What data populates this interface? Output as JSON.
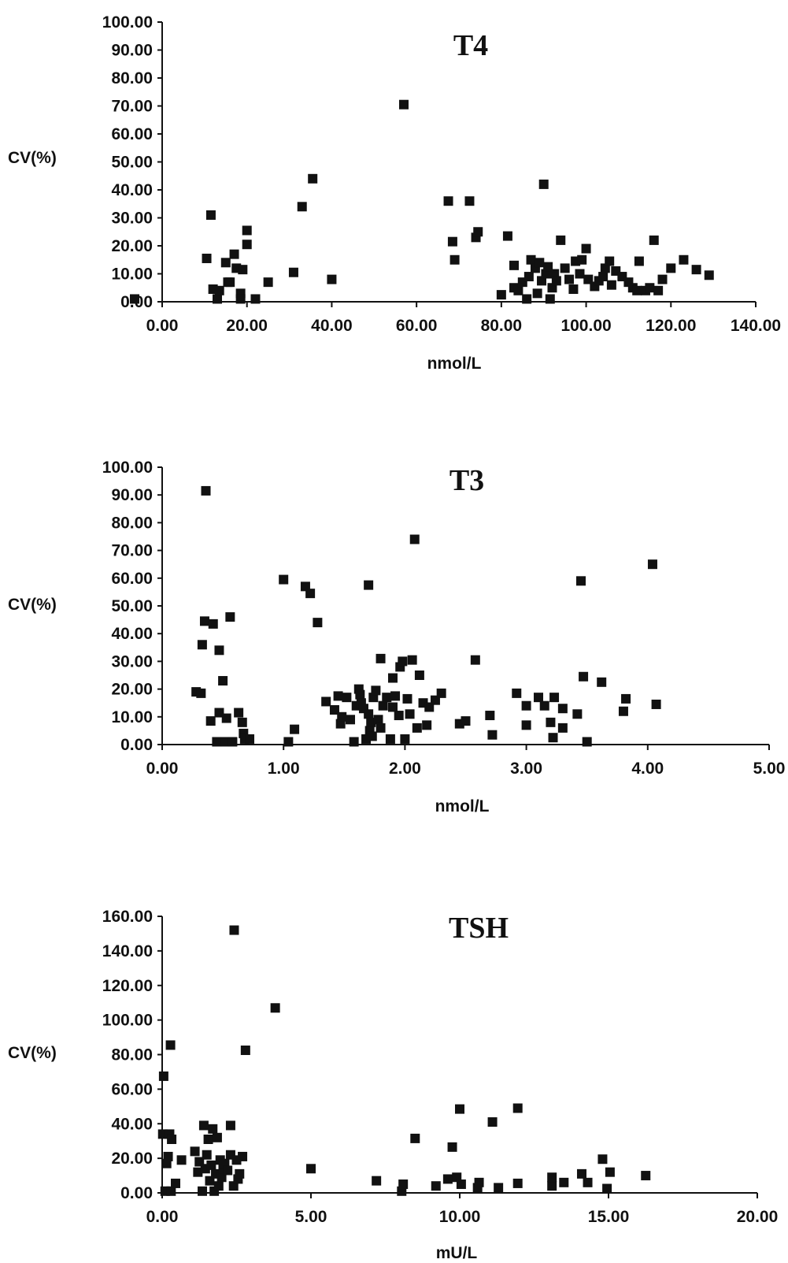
{
  "chart_data": [
    {
      "type": "scatter",
      "title": "T4",
      "xlabel": "nmol/L",
      "ylabel": "CV(%)",
      "xlim": [
        0,
        140
      ],
      "ylim": [
        0,
        100
      ],
      "xticks": [
        "0.00",
        "20.00",
        "40.00",
        "60.00",
        "80.00",
        "100.00",
        "120.00",
        "140.00"
      ],
      "yticks": [
        "0.00",
        "10.00",
        "20.00",
        "30.00",
        "40.00",
        "50.00",
        "60.00",
        "70.00",
        "80.00",
        "90.00",
        "100.00"
      ],
      "grid": false,
      "marker_color": "#111111",
      "points": [
        [
          -6.5,
          1
        ],
        [
          10.5,
          15.5
        ],
        [
          11.5,
          31
        ],
        [
          12,
          4.5
        ],
        [
          13,
          1
        ],
        [
          13.5,
          4
        ],
        [
          15,
          14
        ],
        [
          15.5,
          7
        ],
        [
          16,
          7
        ],
        [
          17,
          17
        ],
        [
          17.5,
          12
        ],
        [
          18.5,
          3
        ],
        [
          18.5,
          1
        ],
        [
          19,
          11.5
        ],
        [
          20,
          25.5
        ],
        [
          20,
          20.5
        ],
        [
          22,
          1
        ],
        [
          25,
          7
        ],
        [
          31,
          10.5
        ],
        [
          33,
          34
        ],
        [
          35.5,
          44
        ],
        [
          40,
          8
        ],
        [
          57,
          70.5
        ],
        [
          67.5,
          36
        ],
        [
          68.5,
          21.5
        ],
        [
          69,
          15
        ],
        [
          72.5,
          36
        ],
        [
          74,
          23
        ],
        [
          74.5,
          25
        ],
        [
          80,
          2.5
        ],
        [
          81.5,
          23.5
        ],
        [
          83,
          13
        ],
        [
          83,
          5
        ],
        [
          84,
          4
        ],
        [
          85,
          7
        ],
        [
          86,
          1
        ],
        [
          86.5,
          9
        ],
        [
          87,
          15
        ],
        [
          88,
          12
        ],
        [
          88.5,
          3
        ],
        [
          89,
          14
        ],
        [
          89.5,
          7.5
        ],
        [
          90,
          42
        ],
        [
          90.5,
          10
        ],
        [
          91,
          12.5
        ],
        [
          91.5,
          1
        ],
        [
          92,
          5
        ],
        [
          92.5,
          10
        ],
        [
          93,
          7.5
        ],
        [
          94,
          22
        ],
        [
          95,
          12
        ],
        [
          96,
          8
        ],
        [
          97,
          4.5
        ],
        [
          97.5,
          14.5
        ],
        [
          98.5,
          10
        ],
        [
          99,
          15
        ],
        [
          100,
          19
        ],
        [
          100.5,
          8
        ],
        [
          102,
          5.5
        ],
        [
          103,
          7.5
        ],
        [
          104,
          9
        ],
        [
          104.5,
          12
        ],
        [
          105.5,
          14.5
        ],
        [
          106,
          6
        ],
        [
          107,
          11
        ],
        [
          108.5,
          9
        ],
        [
          110,
          7
        ],
        [
          111,
          5
        ],
        [
          112,
          4
        ],
        [
          112.5,
          14.5
        ],
        [
          114,
          4
        ],
        [
          115,
          5
        ],
        [
          116,
          22
        ],
        [
          117,
          4
        ],
        [
          118,
          8
        ],
        [
          120,
          12
        ],
        [
          123,
          15
        ],
        [
          126,
          11.5
        ],
        [
          129,
          9.5
        ]
      ]
    },
    {
      "type": "scatter",
      "title": "T3",
      "xlabel": "nmol/L",
      "ylabel": "CV(%)",
      "xlim": [
        0,
        5
      ],
      "ylim": [
        0,
        100
      ],
      "xticks": [
        "0.00",
        "1.00",
        "2.00",
        "3.00",
        "4.00",
        "5.00"
      ],
      "yticks": [
        "0.00",
        "10.00",
        "20.00",
        "30.00",
        "40.00",
        "50.00",
        "60.00",
        "70.00",
        "80.00",
        "90.00",
        "100.00"
      ],
      "grid": false,
      "marker_color": "#111111",
      "points": [
        [
          0.28,
          19
        ],
        [
          0.32,
          18.5
        ],
        [
          0.33,
          36
        ],
        [
          0.35,
          44.5
        ],
        [
          0.36,
          91.5
        ],
        [
          0.4,
          8.5
        ],
        [
          0.42,
          43.5
        ],
        [
          0.45,
          1
        ],
        [
          0.47,
          11.5
        ],
        [
          0.47,
          34
        ],
        [
          0.5,
          23
        ],
        [
          0.52,
          1
        ],
        [
          0.53,
          9.5
        ],
        [
          0.56,
          46
        ],
        [
          0.58,
          1
        ],
        [
          0.63,
          11.5
        ],
        [
          0.66,
          8
        ],
        [
          0.67,
          4
        ],
        [
          0.68,
          2
        ],
        [
          0.72,
          2
        ],
        [
          1.0,
          59.5
        ],
        [
          1.04,
          1
        ],
        [
          1.09,
          5.5
        ],
        [
          1.18,
          57
        ],
        [
          1.22,
          54.5
        ],
        [
          1.28,
          44
        ],
        [
          1.35,
          15.5
        ],
        [
          1.42,
          12.5
        ],
        [
          1.45,
          17.5
        ],
        [
          1.47,
          7.5
        ],
        [
          1.48,
          10
        ],
        [
          1.52,
          17
        ],
        [
          1.55,
          9
        ],
        [
          1.58,
          1
        ],
        [
          1.6,
          14
        ],
        [
          1.62,
          20
        ],
        [
          1.63,
          18
        ],
        [
          1.64,
          15
        ],
        [
          1.66,
          13
        ],
        [
          1.68,
          2
        ],
        [
          1.7,
          57.5
        ],
        [
          1.7,
          11
        ],
        [
          1.71,
          5
        ],
        [
          1.72,
          8
        ],
        [
          1.73,
          3
        ],
        [
          1.74,
          17
        ],
        [
          1.76,
          19.5
        ],
        [
          1.78,
          9
        ],
        [
          1.8,
          6
        ],
        [
          1.8,
          31
        ],
        [
          1.82,
          14
        ],
        [
          1.85,
          17
        ],
        [
          1.88,
          2
        ],
        [
          1.9,
          24
        ],
        [
          1.9,
          13.5
        ],
        [
          1.92,
          17.5
        ],
        [
          1.95,
          10.5
        ],
        [
          1.96,
          28
        ],
        [
          1.98,
          30
        ],
        [
          2.0,
          2
        ],
        [
          2.02,
          16.5
        ],
        [
          2.04,
          11
        ],
        [
          2.06,
          30.5
        ],
        [
          2.08,
          74
        ],
        [
          2.1,
          6
        ],
        [
          2.12,
          25
        ],
        [
          2.15,
          15
        ],
        [
          2.18,
          7
        ],
        [
          2.2,
          13.5
        ],
        [
          2.25,
          16
        ],
        [
          2.3,
          18.5
        ],
        [
          2.45,
          7.5
        ],
        [
          2.5,
          8.5
        ],
        [
          2.58,
          30.5
        ],
        [
          2.7,
          10.5
        ],
        [
          2.72,
          3.5
        ],
        [
          2.92,
          18.5
        ],
        [
          3.0,
          14
        ],
        [
          3.0,
          7
        ],
        [
          3.1,
          17
        ],
        [
          3.15,
          14
        ],
        [
          3.2,
          8
        ],
        [
          3.22,
          2.5
        ],
        [
          3.23,
          17
        ],
        [
          3.3,
          13
        ],
        [
          3.3,
          6
        ],
        [
          3.42,
          11
        ],
        [
          3.45,
          59
        ],
        [
          3.47,
          24.5
        ],
        [
          3.5,
          1
        ],
        [
          3.62,
          22.5
        ],
        [
          3.8,
          12
        ],
        [
          3.82,
          16.5
        ],
        [
          4.04,
          65
        ],
        [
          4.07,
          14.5
        ]
      ]
    },
    {
      "type": "scatter",
      "title": "TSH",
      "xlabel": "mU/L",
      "ylabel": "CV(%)",
      "xlim": [
        0,
        20
      ],
      "ylim": [
        0,
        160
      ],
      "xticks": [
        "0.00",
        "5.00",
        "10.00",
        "15.00",
        "20.00"
      ],
      "yticks": [
        "0.00",
        "20.00",
        "40.00",
        "60.00",
        "80.00",
        "100.00",
        "120.00",
        "140.00",
        "160.00"
      ],
      "grid": false,
      "marker_color": "#111111",
      "points": [
        [
          0.02,
          34
        ],
        [
          0.05,
          67.5
        ],
        [
          0.1,
          1
        ],
        [
          0.15,
          17
        ],
        [
          0.2,
          21
        ],
        [
          0.25,
          34
        ],
        [
          0.28,
          85.5
        ],
        [
          0.3,
          1
        ],
        [
          0.32,
          31
        ],
        [
          0.45,
          5.5
        ],
        [
          0.65,
          19
        ],
        [
          1.1,
          24
        ],
        [
          1.2,
          12
        ],
        [
          1.25,
          18
        ],
        [
          1.35,
          1
        ],
        [
          1.4,
          39
        ],
        [
          1.45,
          14
        ],
        [
          1.5,
          22
        ],
        [
          1.55,
          31
        ],
        [
          1.6,
          7
        ],
        [
          1.65,
          16
        ],
        [
          1.7,
          37
        ],
        [
          1.75,
          1
        ],
        [
          1.8,
          11
        ],
        [
          1.85,
          32
        ],
        [
          1.9,
          4
        ],
        [
          1.95,
          19
        ],
        [
          2.0,
          9
        ],
        [
          2.05,
          14
        ],
        [
          2.1,
          17
        ],
        [
          2.2,
          13
        ],
        [
          2.3,
          22
        ],
        [
          2.3,
          39
        ],
        [
          2.4,
          4
        ],
        [
          2.42,
          152
        ],
        [
          2.5,
          19
        ],
        [
          2.55,
          8
        ],
        [
          2.6,
          11
        ],
        [
          2.7,
          21
        ],
        [
          2.8,
          82.5
        ],
        [
          3.8,
          107
        ],
        [
          5.0,
          14
        ],
        [
          7.2,
          7
        ],
        [
          8.05,
          1
        ],
        [
          8.1,
          5
        ],
        [
          8.5,
          31.5
        ],
        [
          9.2,
          4
        ],
        [
          9.6,
          8
        ],
        [
          9.75,
          26.5
        ],
        [
          9.9,
          9
        ],
        [
          10.0,
          48.5
        ],
        [
          10.05,
          5
        ],
        [
          10.6,
          3
        ],
        [
          10.65,
          6
        ],
        [
          11.1,
          41
        ],
        [
          11.3,
          3
        ],
        [
          11.95,
          49
        ],
        [
          11.95,
          5.5
        ],
        [
          13.1,
          4
        ],
        [
          13.1,
          9
        ],
        [
          13.5,
          6
        ],
        [
          14.1,
          11
        ],
        [
          14.3,
          6
        ],
        [
          14.8,
          19.5
        ],
        [
          14.95,
          2.5
        ],
        [
          15.05,
          12
        ],
        [
          16.25,
          10
        ]
      ]
    }
  ]
}
